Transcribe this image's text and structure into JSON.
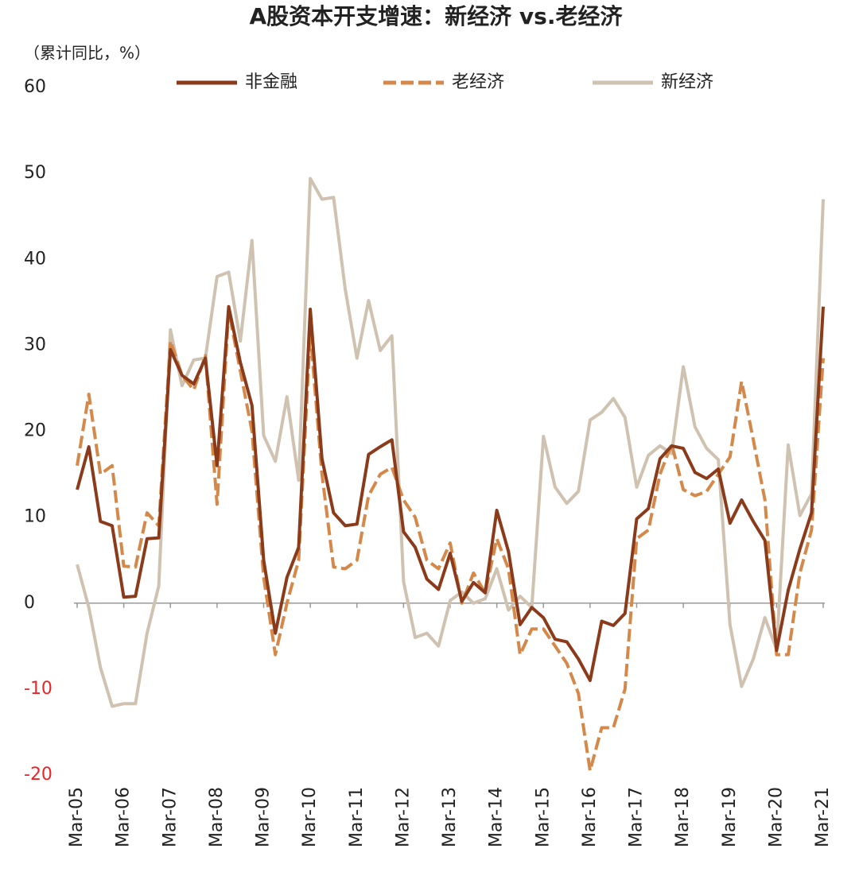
{
  "chart_data": {
    "type": "line",
    "title": "A股资本开支增速：新经济 vs.老经济",
    "unit_label": "（累计同比，%）",
    "categories": [
      "Mar-05",
      null,
      null,
      null,
      "Mar-06",
      null,
      null,
      null,
      "Mar-07",
      null,
      null,
      null,
      "Mar-08",
      null,
      null,
      null,
      "Mar-09",
      null,
      null,
      null,
      "Mar-10",
      null,
      null,
      null,
      "Mar-11",
      null,
      null,
      null,
      "Mar-12",
      null,
      null,
      null,
      "Mar-13",
      null,
      null,
      null,
      "Mar-14",
      null,
      null,
      null,
      "Mar-15",
      null,
      null,
      null,
      "Mar-16",
      null,
      null,
      null,
      "Mar-17",
      null,
      null,
      null,
      "Mar-18",
      null,
      null,
      null,
      "Mar-19",
      null,
      null,
      null,
      "Mar-20",
      null,
      null,
      null,
      "Mar-21"
    ],
    "series": [
      {
        "name": "非金融",
        "color": "#8b3a1a",
        "dashed": false,
        "values": [
          13.2,
          18.2,
          9.5,
          9.0,
          0.7,
          0.8,
          7.5,
          7.6,
          29.5,
          26.5,
          25.5,
          28.5,
          16,
          34.5,
          28,
          23,
          5,
          -3.5,
          3,
          6.5,
          34.2,
          16.8,
          10.5,
          9,
          9.2,
          17.3,
          18.2,
          19,
          8.3,
          6.5,
          2.8,
          1.6,
          5.8,
          0.2,
          2.4,
          1.2,
          10.8,
          6,
          -2.5,
          -0.5,
          -1.7,
          -4.2,
          -4.5,
          -6.5,
          -9.0,
          -2.1,
          -2.6,
          -1.2,
          9.8,
          11,
          16.8,
          18.3,
          18,
          15.2,
          14.5,
          15.6,
          9.3,
          12,
          9.5,
          7.3,
          -5.5,
          1.5,
          6.3,
          10.5,
          34.5
        ]
      },
      {
        "name": "老经济",
        "color": "#d4894a",
        "dashed": true,
        "values": [
          16,
          24.3,
          15,
          16,
          4.3,
          4.2,
          10.5,
          9,
          30.5,
          26.5,
          24.8,
          28.8,
          11.5,
          34,
          27,
          20,
          3,
          -6,
          0,
          5,
          31.5,
          15,
          4.2,
          4,
          5,
          12.5,
          15,
          15.8,
          12,
          10,
          5,
          4,
          7,
          0,
          3.5,
          1.2,
          7.5,
          4,
          -6,
          -3,
          -3,
          -5,
          -7,
          -10.5,
          -19.5,
          -14.5,
          -14.5,
          -10,
          7.5,
          8.5,
          15,
          18.5,
          13.2,
          12.5,
          13,
          15,
          17,
          25.8,
          19,
          12,
          -6,
          -6,
          3.5,
          8.5,
          28.5
        ]
      },
      {
        "name": "新经济",
        "color": "#cfc2b0",
        "dashed": false,
        "values": [
          4.5,
          -0.5,
          -7.5,
          -12,
          -11.7,
          -11.7,
          -3.5,
          2,
          31.8,
          25.3,
          28.3,
          28.5,
          38,
          38.5,
          30.5,
          42.2,
          19.5,
          16.5,
          24,
          14.3,
          49.4,
          47,
          47.2,
          36.5,
          28.5,
          35.2,
          29.4,
          31.1,
          2.5,
          -4,
          -3.5,
          -5,
          0.3,
          1.3,
          0,
          0.5,
          4,
          -0.8,
          0.8,
          -0.5,
          19.4,
          13.5,
          11.6,
          13,
          21.3,
          22.2,
          23.8,
          21.6,
          13.5,
          17.2,
          18.3,
          17.4,
          27.5,
          20.5,
          18,
          16.7,
          -2.5,
          -9.7,
          -6.5,
          -1.7,
          -5.4,
          18.4,
          10.2,
          12.7,
          47
        ]
      }
    ],
    "ylim": [
      -20,
      60
    ],
    "yticks": [
      -20,
      -10,
      0,
      10,
      20,
      30,
      40,
      50,
      60
    ],
    "negative_tick_color": "#e8262a",
    "grid": false,
    "legend": "top"
  }
}
